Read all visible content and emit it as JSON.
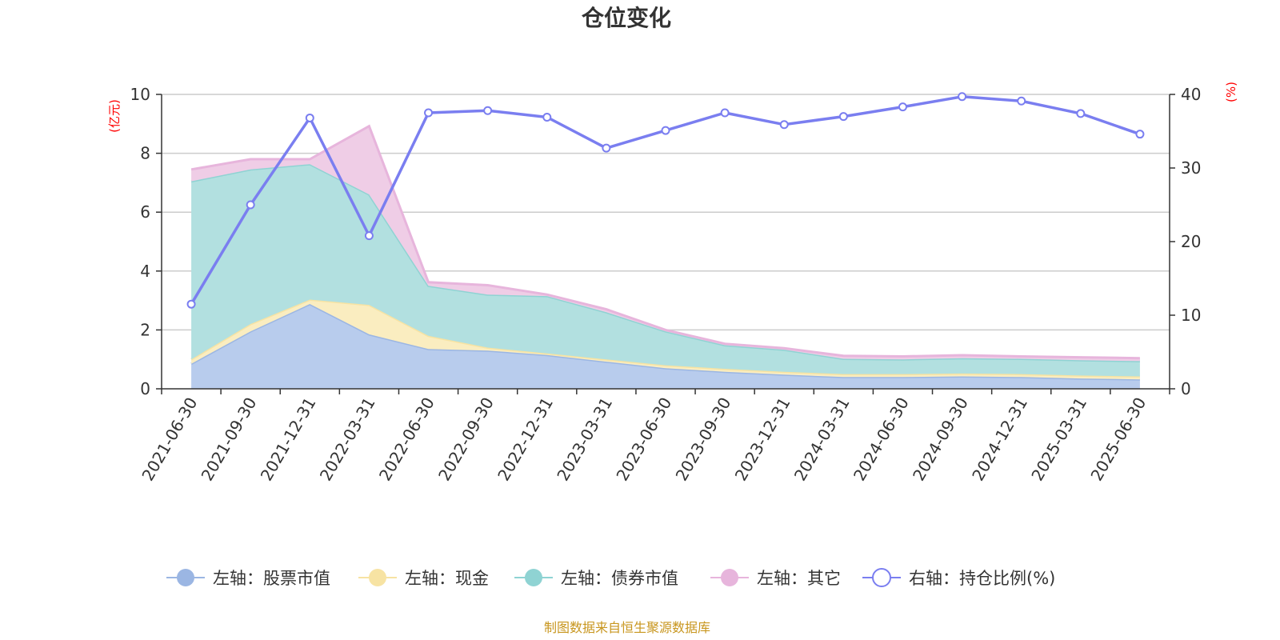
{
  "title": "仓位变化",
  "source": "制图数据来自恒生聚源数据库",
  "chart_data": {
    "type": "area",
    "categories": [
      "2021-06-30",
      "2021-09-30",
      "2021-12-31",
      "2022-03-31",
      "2022-06-30",
      "2022-09-30",
      "2022-12-31",
      "2023-03-31",
      "2023-06-30",
      "2023-09-30",
      "2023-12-31",
      "2024-03-31",
      "2024-06-30",
      "2024-09-30",
      "2024-12-31",
      "2025-03-31",
      "2025-06-30"
    ],
    "left_axis": {
      "unit": "(亿元)",
      "min": 0,
      "max": 10,
      "ticks": [
        "0",
        "2",
        "4",
        "6",
        "8",
        "10"
      ]
    },
    "right_axis": {
      "unit": "(%)",
      "min": 0,
      "max": 40,
      "ticks": [
        "0",
        "10",
        "20",
        "30",
        "40"
      ]
    },
    "stacked": true,
    "series": [
      {
        "name": "左轴：股票市值",
        "axis": "left",
        "color": "#9bb6e3",
        "fill": "#b8cced",
        "values": [
          0.85,
          1.95,
          2.88,
          1.85,
          1.35,
          1.3,
          1.15,
          0.92,
          0.7,
          0.58,
          0.48,
          0.4,
          0.4,
          0.42,
          0.4,
          0.35,
          0.32
        ]
      },
      {
        "name": "左轴：现金",
        "axis": "left",
        "color": "#f7e3a3",
        "fill": "#faedc0",
        "values": [
          0.15,
          0.25,
          0.15,
          1.0,
          0.45,
          0.1,
          0.05,
          0.08,
          0.1,
          0.1,
          0.1,
          0.1,
          0.1,
          0.1,
          0.1,
          0.1,
          0.1
        ]
      },
      {
        "name": "左轴：债券市值",
        "axis": "left",
        "color": "#8fd3d3",
        "fill": "#b2e0e0",
        "values": [
          6.05,
          5.25,
          4.6,
          3.75,
          1.7,
          1.8,
          1.95,
          1.6,
          1.15,
          0.8,
          0.75,
          0.52,
          0.5,
          0.52,
          0.52,
          0.52,
          0.52
        ]
      },
      {
        "name": "左轴：其它",
        "axis": "left",
        "color": "#e7b5dc",
        "fill": "#efcde6",
        "values": [
          0.4,
          0.35,
          0.17,
          2.32,
          0.12,
          0.32,
          0.05,
          0.1,
          0.05,
          0.05,
          0.05,
          0.1,
          0.1,
          0.1,
          0.08,
          0.1,
          0.1
        ]
      },
      {
        "name": "右轴：持仓比例(%)",
        "axis": "right",
        "color": "#7a7ef0",
        "type": "line",
        "values": [
          11.5,
          25.0,
          36.8,
          20.8,
          37.5,
          37.8,
          36.9,
          32.7,
          35.1,
          37.5,
          35.9,
          37.0,
          38.3,
          39.7,
          39.1,
          37.4,
          34.6
        ]
      }
    ],
    "legend_position": "bottom",
    "grid": true
  }
}
